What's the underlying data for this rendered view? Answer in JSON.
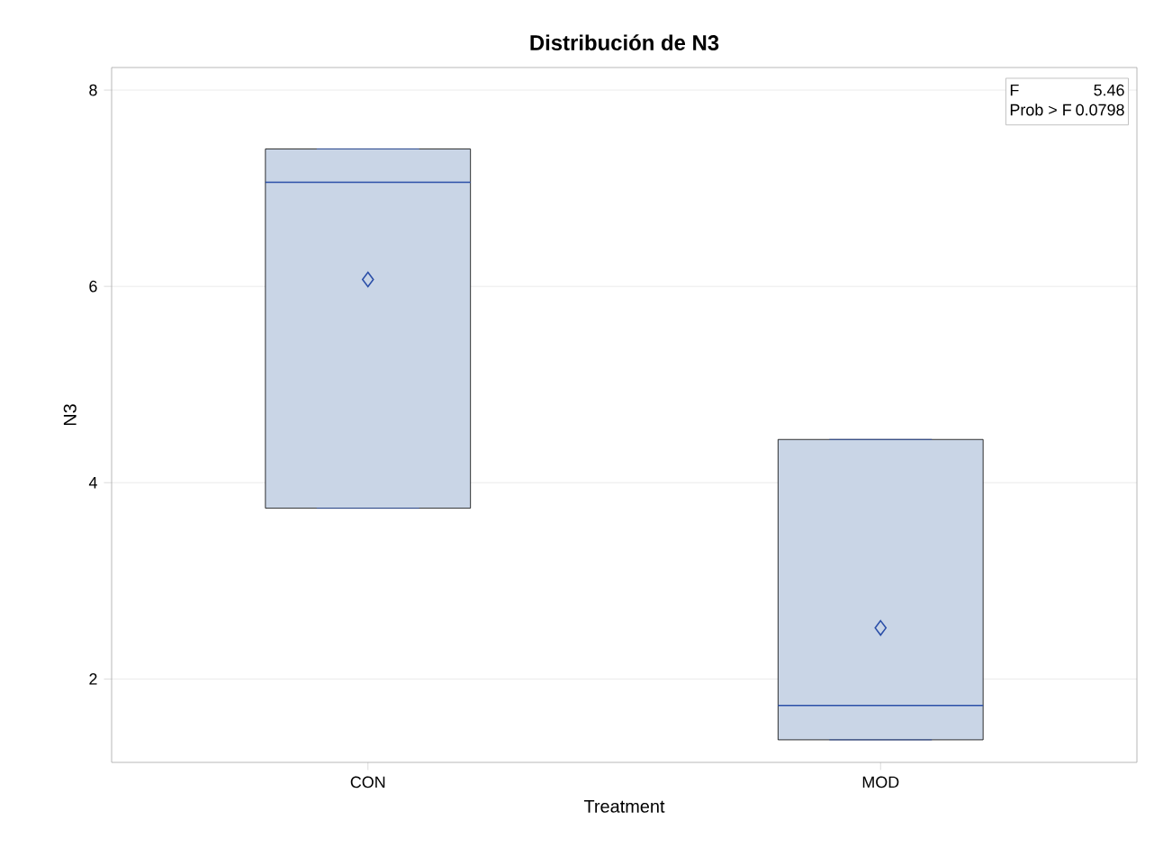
{
  "chart_data": {
    "type": "box",
    "title": "Distribución de N3",
    "xlabel": "Treatment",
    "ylabel": "N3",
    "categories": [
      "CON",
      "MOD"
    ],
    "boxes": [
      {
        "low": 3.74,
        "q1": 3.74,
        "median": 7.06,
        "q3": 7.4,
        "high": 7.4,
        "mean": 6.07
      },
      {
        "low": 1.38,
        "q1": 1.38,
        "median": 1.73,
        "q3": 4.44,
        "high": 4.44,
        "mean": 2.52
      }
    ],
    "color": "#c9d5e6",
    "ylim": [
      1.15,
      8.23
    ],
    "yticks": [
      2,
      4,
      6,
      8
    ],
    "grid": "y",
    "annotations": [
      "F",
      "5.46",
      "Prob > F",
      "0.0798"
    ]
  }
}
